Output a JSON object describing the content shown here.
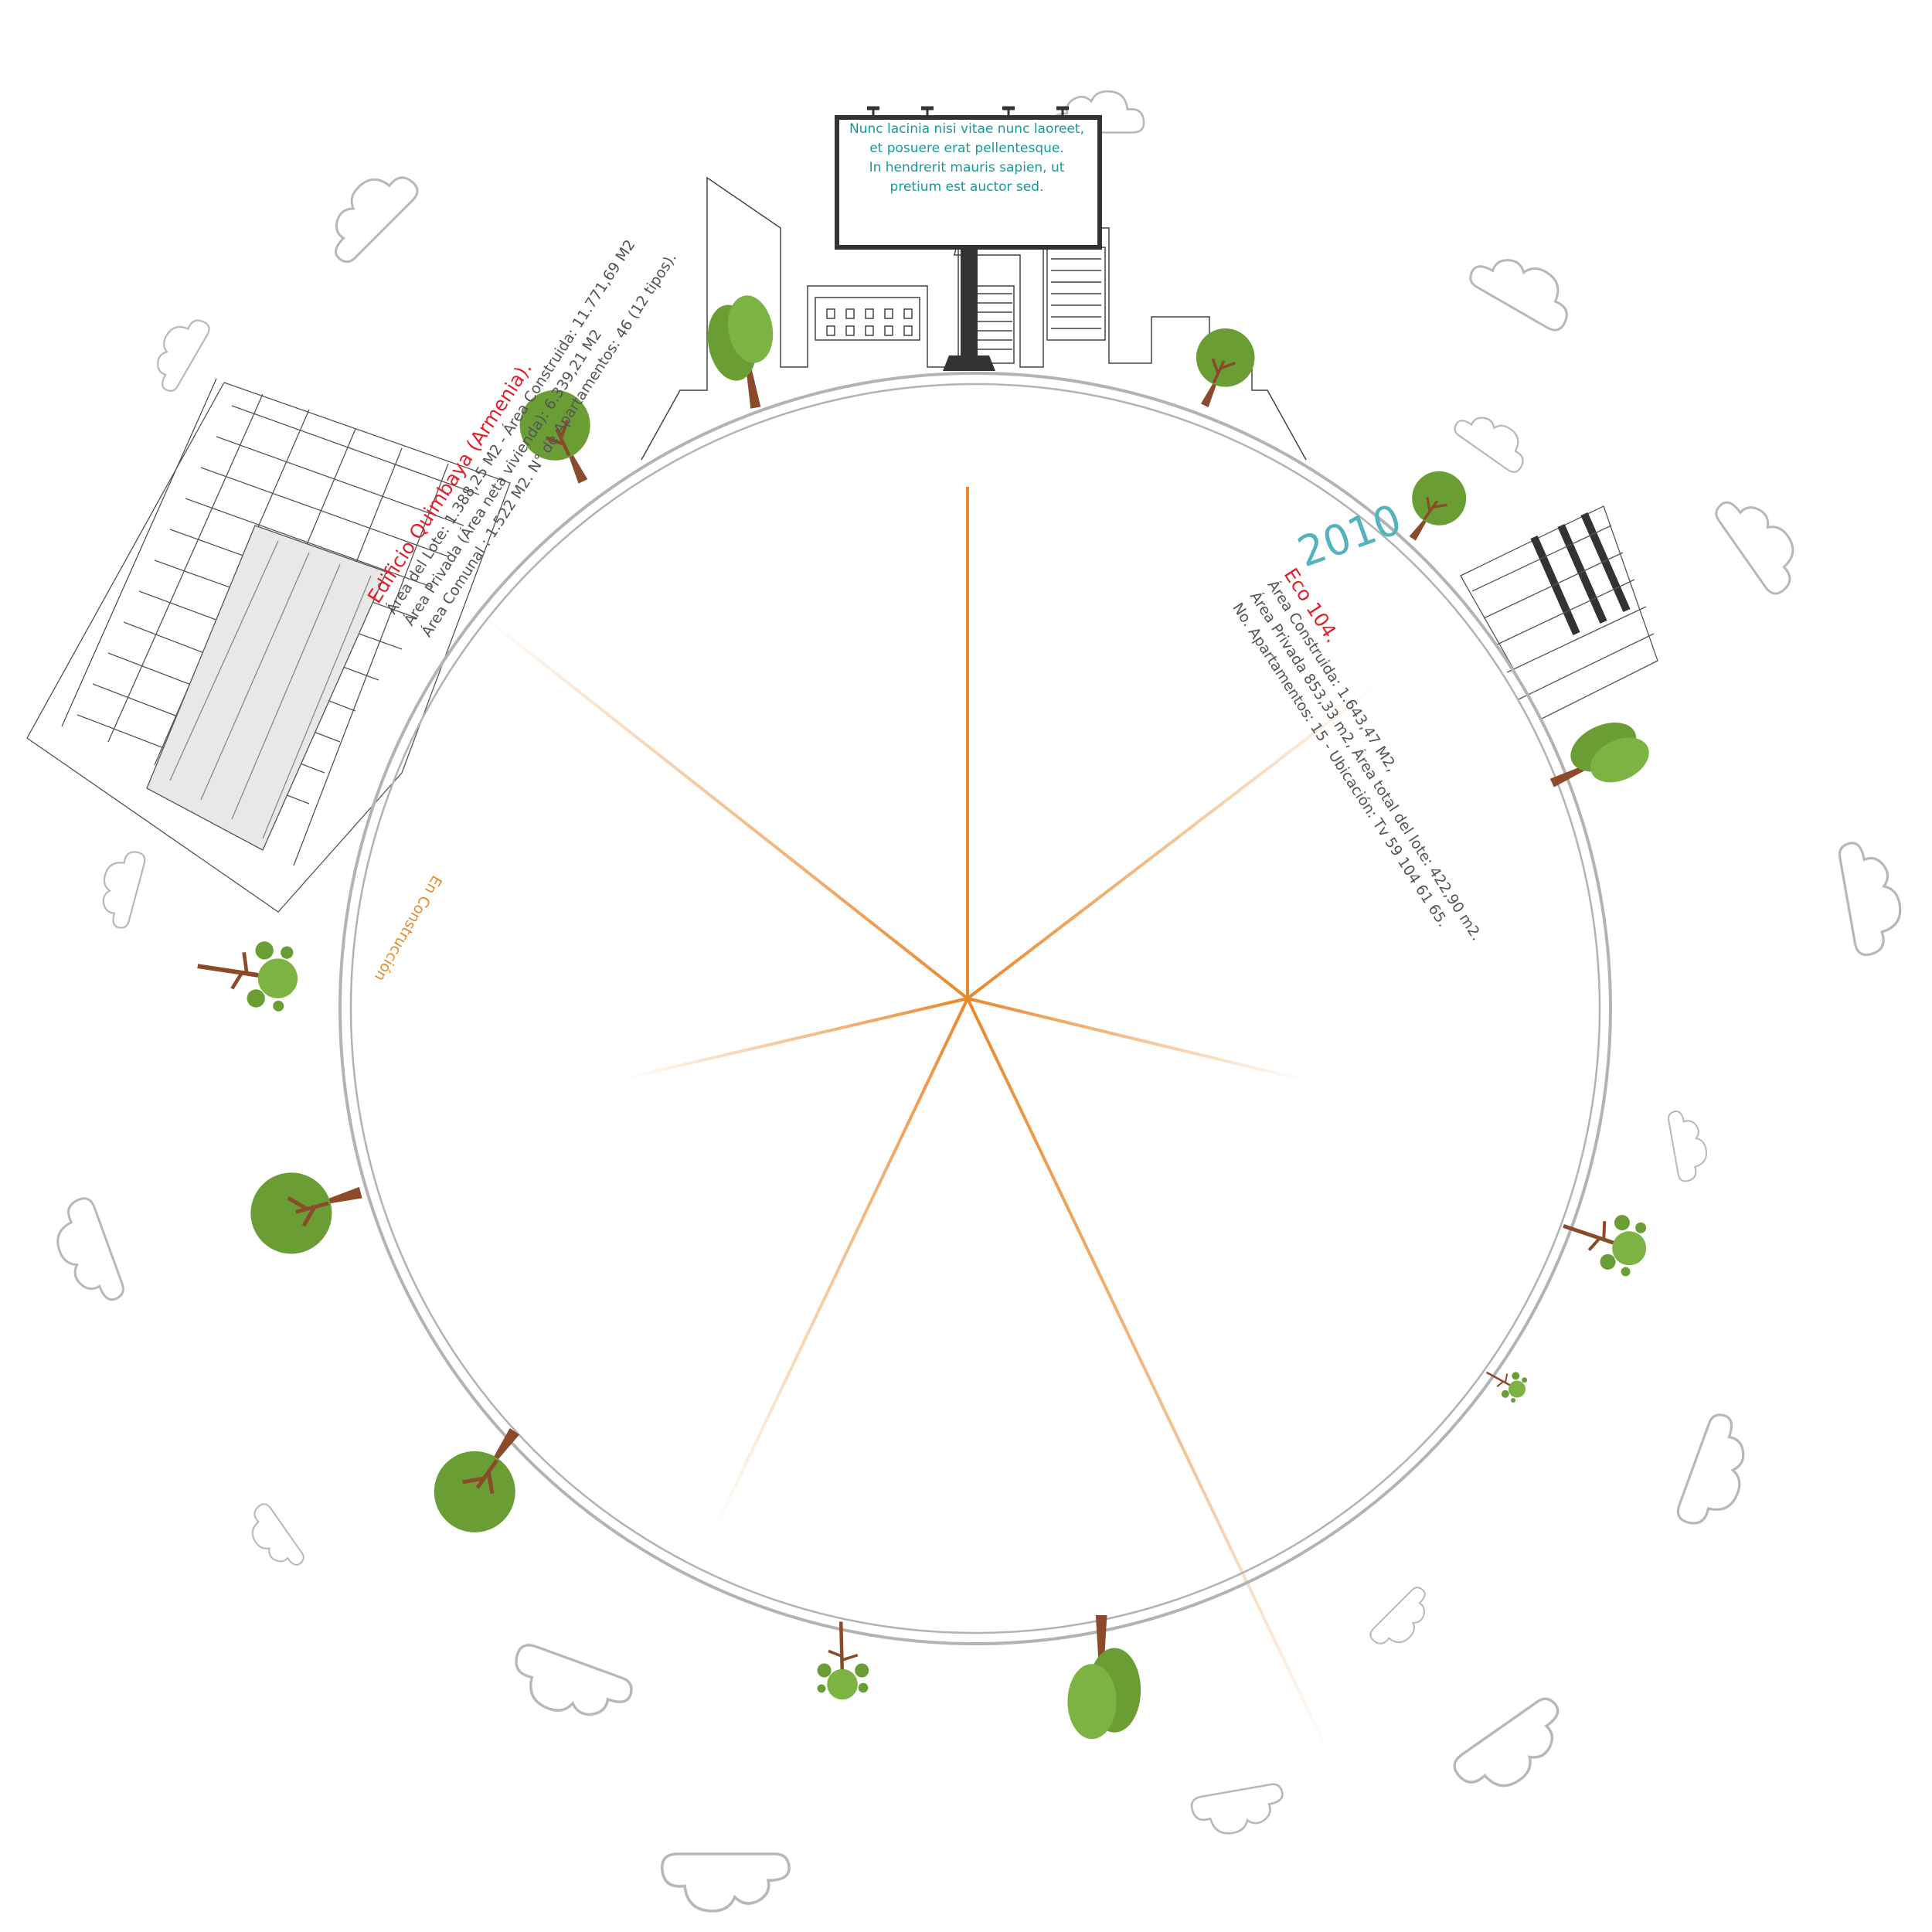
{
  "billboard": {
    "lines": [
      "Nunc lacinia nisi vitae nunc laoreet,",
      "et posuere erat pellentesque.",
      "In hendrerit mauris sapien, ut",
      "pretium est auctor sed."
    ],
    "text_color": "#17999b"
  },
  "project_left": {
    "status": "En Construcción",
    "title": "Edificio Quimbaya (Armenia).",
    "details": [
      "Área del Lote: 1.388,25 M2 - Área Construida: 11.771,69 M2",
      "Área Privada (Área neta vivienda): 6.339,21 M2",
      "Área Comunal : 1.522 M2. N° de Apartamentos: 46 (12 tipos)."
    ]
  },
  "project_right": {
    "year": "2010",
    "title": "Eco 104.",
    "details": [
      "Área Construida: 1.643,47 M2,",
      "Área Privada 853,33 m2, Área total del lote: 422,90 m2.",
      "No. Apartamentos: 15 - Ubicación: Tv 59 104 61 65."
    ]
  },
  "colors": {
    "ring": "#b3b3b3",
    "spoke": "#e9882b",
    "tree_green": "#6a9e35",
    "tree_light": "#7cb342",
    "trunk": "#8b4a2a",
    "accent_red": "#e0222c",
    "year_teal": "#55b3be",
    "status_orange": "#e88a2e"
  }
}
